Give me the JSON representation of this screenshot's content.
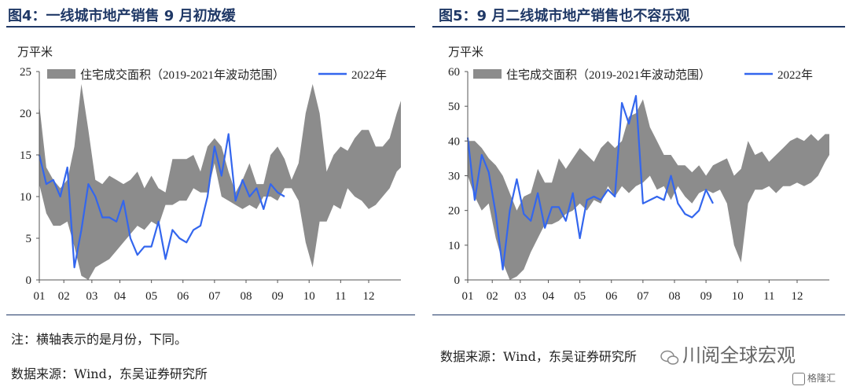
{
  "left": {
    "title": "图4：一线城市地产销售 9 月初放缓",
    "note": "注：横轴表示的是月份，下同。",
    "source": "数据来源：Wind，东吴证券研究所"
  },
  "right": {
    "title": "图5：9 月二线城市地产销售也不容乐观",
    "source": "数据来源：Wind，东吴证券研究所"
  },
  "watermark": {
    "text": "川阅全球宏观",
    "brand": "格隆汇"
  },
  "colors": {
    "band": "#8c8c8c",
    "line": "#3366ee",
    "title": "#1f3866"
  },
  "chart_data": [
    {
      "type": "area",
      "unit": "万平米",
      "ylim": [
        0,
        25
      ],
      "yticks": [
        0,
        5,
        10,
        15,
        20,
        25
      ],
      "xlim": [
        1,
        52.6
      ],
      "x_tick_labels": [
        "01",
        "02",
        "03",
        "04",
        "05",
        "06",
        "07",
        "08",
        "09",
        "10",
        "11",
        "12"
      ],
      "x_tick_positions": [
        1,
        4.5,
        8.5,
        12.5,
        17,
        21.5,
        26,
        30.5,
        35,
        39.5,
        44,
        48
      ],
      "legend": [
        "住宅成交面积（2019-2021年波动范围）",
        "2022年"
      ],
      "band_x": [
        1,
        2,
        3,
        4,
        5,
        6,
        7,
        8,
        9,
        10,
        11,
        12,
        13,
        14,
        15,
        16,
        17,
        18,
        19,
        20,
        21,
        22,
        23,
        24,
        25,
        26,
        27,
        28,
        29,
        30,
        31,
        32,
        33,
        34,
        35,
        36,
        37,
        38,
        39,
        40,
        41,
        42,
        43,
        44,
        45,
        46,
        47,
        48,
        49,
        50,
        51,
        52,
        52.6
      ],
      "band_low": [
        11.5,
        8,
        6.5,
        6.5,
        7,
        4,
        0.5,
        0,
        1.5,
        2,
        2.5,
        3.5,
        4.5,
        5.5,
        6.5,
        6,
        7,
        6.5,
        9,
        9,
        9.5,
        9.5,
        11,
        10.5,
        10.5,
        14,
        10,
        9.5,
        9,
        8.5,
        9,
        8.5,
        10,
        10,
        9.5,
        11,
        11,
        9.5,
        4.5,
        1.5,
        7,
        7,
        9,
        8.5,
        11,
        10,
        9.5,
        8.5,
        9,
        10,
        11,
        13,
        13.5
      ],
      "band_high": [
        21,
        13.5,
        12,
        11,
        12,
        16,
        23.5,
        18,
        12,
        11.5,
        12.5,
        12,
        11.5,
        12,
        13,
        11,
        12.5,
        11,
        10.5,
        14.5,
        14.5,
        14.5,
        15,
        13,
        16,
        17,
        16,
        13,
        10.5,
        12,
        14,
        11.5,
        11.5,
        15,
        16,
        14.5,
        12,
        14,
        20,
        23.5,
        20,
        13,
        15,
        16,
        15.5,
        17,
        18,
        18,
        16,
        16,
        17,
        20,
        21.5
      ],
      "series": [
        {
          "name": "2022年",
          "x": [
            1,
            2,
            3,
            4,
            5,
            6,
            7,
            8,
            9,
            10,
            11,
            12,
            13,
            14,
            15,
            16,
            17,
            18,
            19,
            20,
            21,
            22,
            23,
            24,
            25,
            26,
            27,
            28,
            29,
            30,
            31,
            32,
            33,
            34,
            35,
            36
          ],
          "values": [
            15,
            11.5,
            12,
            10,
            13.5,
            1.5,
            6,
            11.5,
            10,
            7.5,
            7.5,
            7,
            9.5,
            5,
            3,
            4,
            4,
            7,
            2.5,
            6,
            5,
            4.5,
            6,
            6.5,
            10,
            16,
            12.5,
            17.5,
            9.5,
            12,
            10,
            11,
            8.5,
            11.5,
            10.5,
            10
          ]
        }
      ]
    },
    {
      "type": "area",
      "unit": "万平米",
      "ylim": [
        0,
        60
      ],
      "yticks": [
        0,
        10,
        20,
        30,
        40,
        50,
        60
      ],
      "xlim": [
        1,
        52.6
      ],
      "x_tick_labels": [
        "01",
        "02",
        "03",
        "04",
        "05",
        "06",
        "07",
        "08",
        "09",
        "10",
        "11",
        "12"
      ],
      "x_tick_positions": [
        1,
        4.5,
        8.5,
        12.5,
        17,
        21.5,
        26,
        30.5,
        35,
        39.5,
        44,
        48
      ],
      "legend": [
        "住宅成交面积（2019-2021年波动范围）",
        "2022年"
      ],
      "band_x": [
        1,
        2,
        3,
        4,
        5,
        6,
        7,
        8,
        9,
        10,
        11,
        12,
        13,
        14,
        15,
        16,
        17,
        18,
        19,
        20,
        21,
        22,
        23,
        24,
        25,
        26,
        27,
        28,
        29,
        30,
        31,
        32,
        33,
        34,
        35,
        36,
        37,
        38,
        39,
        40,
        41,
        42,
        43,
        44,
        45,
        46,
        47,
        48,
        49,
        50,
        51,
        52,
        52.6
      ],
      "band_low": [
        30,
        24,
        20,
        22,
        12,
        5,
        0,
        1,
        3,
        8,
        12,
        16,
        16,
        17,
        19,
        20,
        22,
        20,
        23,
        22,
        27,
        24,
        27,
        25,
        27,
        28,
        30,
        26,
        27,
        23,
        27,
        24,
        22,
        25,
        26,
        25,
        26,
        22,
        10,
        5,
        22,
        26,
        26,
        27,
        25,
        27,
        27,
        28,
        27,
        28,
        30,
        34,
        36
      ],
      "band_high": [
        40,
        40,
        38,
        35,
        33,
        30,
        25,
        20,
        24,
        25,
        32,
        28,
        28,
        35,
        32,
        35,
        38,
        36,
        34,
        38,
        40,
        38,
        40,
        47,
        48,
        52,
        44,
        40,
        36,
        36,
        33,
        33,
        31,
        33,
        30,
        33,
        34,
        35,
        30,
        32,
        40,
        36,
        37,
        34,
        36,
        38,
        40,
        41,
        40,
        42,
        40,
        42,
        42
      ],
      "series": [
        {
          "name": "2022年",
          "x": [
            1,
            2,
            3,
            4,
            5,
            6,
            7,
            8,
            9,
            10,
            11,
            12,
            13,
            14,
            15,
            16,
            17,
            18,
            19,
            20,
            21,
            22,
            23,
            24,
            25,
            26,
            27,
            28,
            29,
            30,
            31,
            32,
            33,
            34,
            35,
            36
          ],
          "values": [
            41,
            23,
            36,
            31,
            19,
            3,
            20,
            29,
            19,
            17,
            25,
            15,
            21,
            21,
            17,
            25,
            12,
            23,
            24,
            23,
            26,
            24,
            51,
            45,
            53,
            22,
            23,
            24,
            23,
            30,
            22,
            19,
            18,
            20,
            26,
            22
          ]
        }
      ]
    }
  ]
}
